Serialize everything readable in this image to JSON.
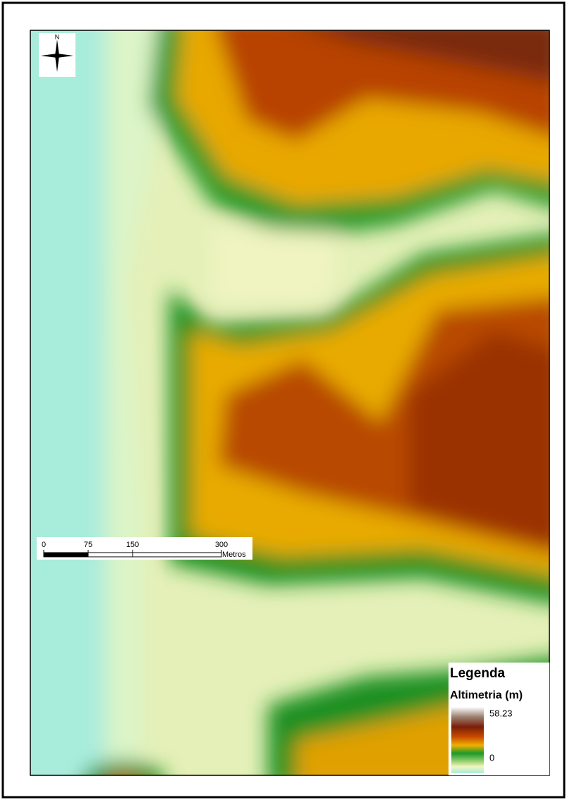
{
  "map": {
    "north_label": "N"
  },
  "legend": {
    "title": "Legenda",
    "subtitle": "Altimetria (m)",
    "max": 58.23,
    "min": 0
  },
  "scale_bar": {
    "ticks": [
      0,
      75,
      150,
      300
    ],
    "unit": "Metros"
  }
}
